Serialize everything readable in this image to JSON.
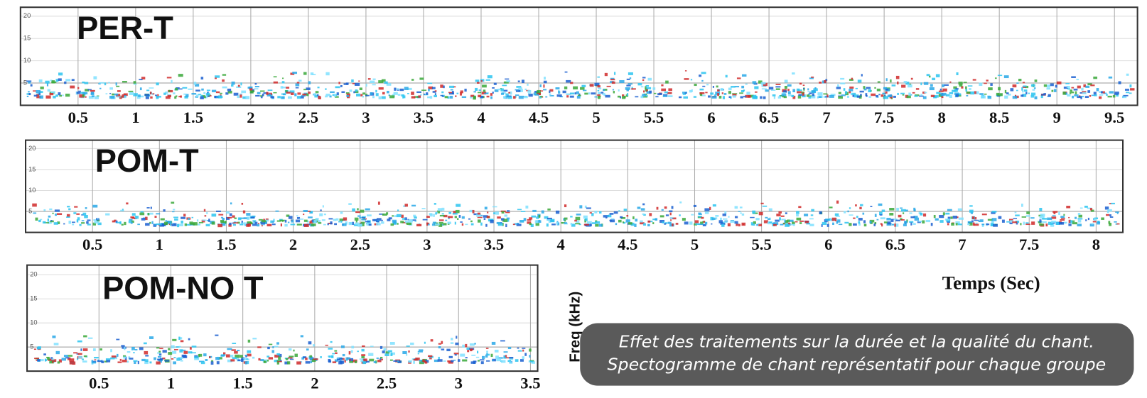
{
  "chart_data": [
    {
      "type": "spectrogram",
      "title": "PER-T",
      "xlim": [
        0,
        9.7
      ],
      "xticks": [
        0.5,
        1.0,
        1.5,
        2.0,
        2.5,
        3.0,
        3.5,
        4.0,
        4.5,
        5.0,
        5.5,
        6.0,
        6.5,
        7.0,
        7.5,
        8.0,
        8.5,
        9.0,
        9.5
      ],
      "ylim": [
        0,
        22
      ],
      "yticks": [
        5,
        10,
        15,
        20
      ],
      "grid": true
    },
    {
      "type": "spectrogram",
      "title": "POM-T",
      "xlim": [
        0,
        8.2
      ],
      "xticks": [
        0.5,
        1.0,
        1.5,
        2.0,
        2.5,
        3.0,
        3.5,
        4.0,
        4.5,
        5.0,
        5.5,
        6.0,
        6.5,
        7.0,
        7.5,
        8.0
      ],
      "ylim": [
        0,
        22
      ],
      "yticks": [
        5,
        10,
        15,
        20
      ],
      "grid": true
    },
    {
      "type": "spectrogram",
      "title": "POM-NO T",
      "xlim": [
        0,
        3.55
      ],
      "xticks": [
        0.5,
        1.0,
        1.5,
        2.0,
        2.5,
        3.0,
        3.5
      ],
      "ylim": [
        0,
        22
      ],
      "yticks": [
        5,
        10,
        15,
        20
      ],
      "grid": true
    }
  ],
  "x_label": "Temps (Sec)",
  "y_label": "Freq (kHz)",
  "caption": [
    "Effet des traitements sur la durée et la qualité du chant.",
    "Spectogramme de chant représentatif pour chaque groupe"
  ]
}
